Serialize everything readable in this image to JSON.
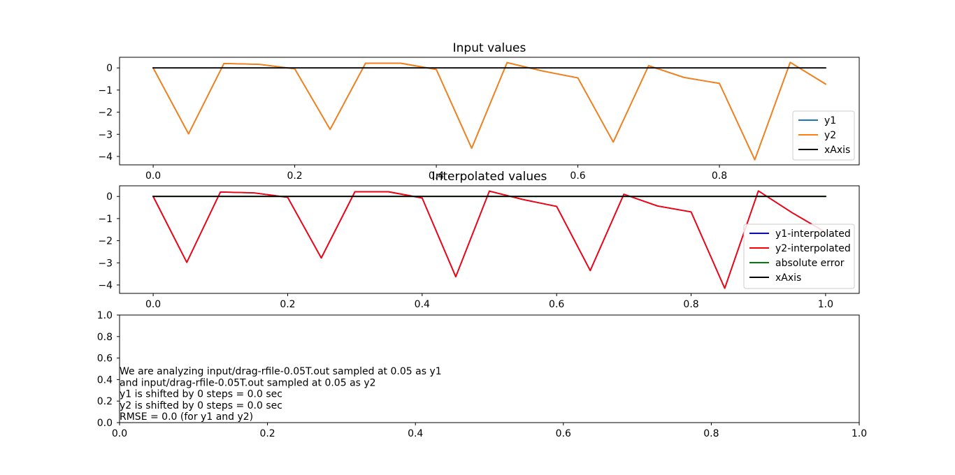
{
  "chart_data": [
    {
      "type": "line",
      "title": "Input values",
      "xlabel": "",
      "ylabel": "",
      "xlim": [
        -0.0475,
        0.9975
      ],
      "ylim": [
        -4.38,
        0.48
      ],
      "xticks": [
        0.0,
        0.2,
        0.4,
        0.6,
        0.8
      ],
      "xtick_labels": [
        "0.0",
        "0.2",
        "0.4",
        "0.6",
        "0.8"
      ],
      "yticks": [
        0,
        -1,
        -2,
        -3,
        -4
      ],
      "ytick_labels": [
        "0",
        "−1",
        "−2",
        "−3",
        "−4"
      ],
      "legend_position": "lower-right",
      "x": [
        0.0,
        0.05,
        0.1,
        0.15,
        0.2,
        0.25,
        0.3,
        0.35,
        0.4,
        0.45,
        0.5,
        0.55,
        0.6,
        0.65,
        0.7,
        0.75,
        0.8,
        0.85,
        0.9,
        0.95
      ],
      "series": [
        {
          "name": "y1",
          "color": "#1f77b4",
          "values": [
            0.0,
            -2.98,
            0.2,
            0.16,
            -0.04,
            -2.78,
            0.21,
            0.21,
            -0.07,
            -3.63,
            0.24,
            -0.14,
            -0.45,
            -3.35,
            0.1,
            -0.43,
            -0.7,
            -4.15,
            0.25,
            -0.73
          ]
        },
        {
          "name": "y2",
          "color": "#ff7f0e",
          "values": [
            0.0,
            -2.98,
            0.2,
            0.16,
            -0.04,
            -2.78,
            0.21,
            0.21,
            -0.07,
            -3.63,
            0.24,
            -0.14,
            -0.45,
            -3.35,
            0.1,
            -0.43,
            -0.7,
            -4.15,
            0.25,
            -0.73
          ]
        },
        {
          "name": "xAxis",
          "color": "#000000",
          "x": [
            0.0,
            0.95
          ],
          "values": [
            0.0,
            0.0
          ]
        }
      ]
    },
    {
      "type": "line",
      "title": "Interpolated values",
      "xlabel": "",
      "ylabel": "",
      "xlim": [
        -0.05,
        1.05
      ],
      "ylim": [
        -4.38,
        0.48
      ],
      "xticks": [
        0.0,
        0.2,
        0.4,
        0.6,
        0.8,
        1.0
      ],
      "xtick_labels": [
        "0.0",
        "0.2",
        "0.4",
        "0.6",
        "0.8",
        "1.0"
      ],
      "yticks": [
        0,
        -1,
        -2,
        -3,
        -4
      ],
      "ytick_labels": [
        "0",
        "−1",
        "−2",
        "−3",
        "−4"
      ],
      "legend_position": "lower-right",
      "x": [
        0.0,
        0.05,
        0.1,
        0.15,
        0.2,
        0.25,
        0.3,
        0.35,
        0.4,
        0.45,
        0.5,
        0.55,
        0.6,
        0.65,
        0.7,
        0.75,
        0.8,
        0.85,
        0.9,
        0.95,
        1.0
      ],
      "series": [
        {
          "name": "y1-interpolated",
          "color": "#0000ff",
          "values": [
            0.0,
            -2.98,
            0.2,
            0.16,
            -0.04,
            -2.78,
            0.21,
            0.21,
            -0.07,
            -3.63,
            0.24,
            -0.14,
            -0.45,
            -3.35,
            0.1,
            -0.43,
            -0.7,
            -4.15,
            0.25,
            -0.73,
            -1.62
          ]
        },
        {
          "name": "y2-interpolated",
          "color": "#ff0000",
          "values": [
            0.0,
            -2.98,
            0.2,
            0.16,
            -0.04,
            -2.78,
            0.21,
            0.21,
            -0.07,
            -3.63,
            0.24,
            -0.14,
            -0.45,
            -3.35,
            0.1,
            -0.43,
            -0.7,
            -4.15,
            0.25,
            -0.73,
            -1.62
          ]
        },
        {
          "name": "absolute error",
          "color": "#008000",
          "values": [
            0,
            0,
            0,
            0,
            0,
            0,
            0,
            0,
            0,
            0,
            0,
            0,
            0,
            0,
            0,
            0,
            0,
            0,
            0,
            0,
            0
          ]
        },
        {
          "name": "xAxis",
          "color": "#000000",
          "x": [
            0.0,
            1.0
          ],
          "values": [
            0.0,
            0.0
          ]
        }
      ]
    },
    {
      "type": "text",
      "title": "",
      "xlim": [
        0.0,
        1.0
      ],
      "ylim": [
        0.0,
        1.0
      ],
      "xticks": [
        0.0,
        0.2,
        0.4,
        0.6,
        0.8,
        1.0
      ],
      "xtick_labels": [
        "0.0",
        "0.2",
        "0.4",
        "0.6",
        "0.8",
        "1.0"
      ],
      "yticks": [
        0.0,
        0.2,
        0.4,
        0.6,
        0.8,
        1.0
      ],
      "ytick_labels": [
        "0.0",
        "0.2",
        "0.4",
        "0.6",
        "0.8",
        "1.0"
      ],
      "annotation_lines": [
        "We are analyzing input/drag-rfile-0.05T.out sampled at 0.05 as y1",
        "and input/drag-rfile-0.05T.out sampled at 0.05 as y2",
        "y1 is shifted by 0 steps = 0.0 sec",
        "y2 is shifted by 0 steps = 0.0 sec",
        "RMSE = 0.0 (for y1 and y2)"
      ]
    }
  ]
}
